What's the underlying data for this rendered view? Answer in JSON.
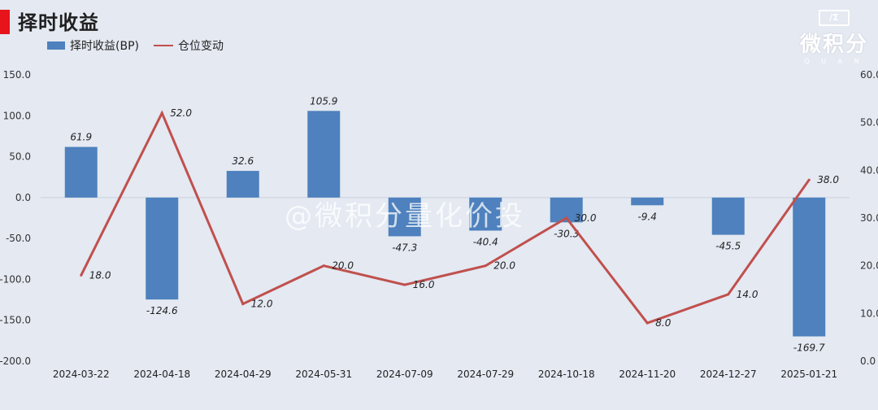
{
  "header": {
    "title": "择时收益"
  },
  "logo": {
    "text": "微积分",
    "mark": "/Σ",
    "sub": "Q U A N"
  },
  "watermark": "@微积分量化价投",
  "chart_data": {
    "type": "bar",
    "categories": [
      "2024-03-22",
      "2024-04-18",
      "2024-04-29",
      "2024-05-31",
      "2024-07-09",
      "2024-07-29",
      "2024-10-18",
      "2024-11-20",
      "2024-12-27",
      "2025-01-21"
    ],
    "series": [
      {
        "name": "择时收益(BP)",
        "type": "bar",
        "axis": "left",
        "color": "#4e81bd",
        "values": [
          61.9,
          -124.6,
          32.6,
          105.9,
          -47.3,
          -40.4,
          -30.3,
          -9.4,
          -45.5,
          -169.7
        ]
      },
      {
        "name": "仓位变动",
        "type": "line",
        "axis": "right",
        "color": "#c0504d",
        "values": [
          18.0,
          52.0,
          12.0,
          20.0,
          16.0,
          20.0,
          30.0,
          8.0,
          14.0,
          38.0
        ]
      }
    ],
    "y_left": {
      "min": -200,
      "max": 150,
      "ticks": [
        "150.0",
        "100.0",
        "50.0",
        "0.0",
        "-50.0",
        "-100.0",
        "-150.0",
        "-200.0"
      ]
    },
    "y_right": {
      "min": 0,
      "max": 60,
      "ticks": [
        "60.0",
        "50.0",
        "40.0",
        "30.0",
        "20.0",
        "10.0",
        "0.0"
      ]
    },
    "bar_labels": [
      "61.9",
      "-124.6",
      "32.6",
      "105.9",
      "-47.3",
      "-40.4",
      "-30.3",
      "-9.4",
      "-45.5",
      "-169.7"
    ],
    "line_labels": [
      "18.0",
      "52.0",
      "12.0",
      "20.0",
      "16.0",
      "20.0",
      "30.0",
      "8.0",
      "14.0",
      "38.0"
    ],
    "legend_position": "top-left",
    "grid": false
  }
}
